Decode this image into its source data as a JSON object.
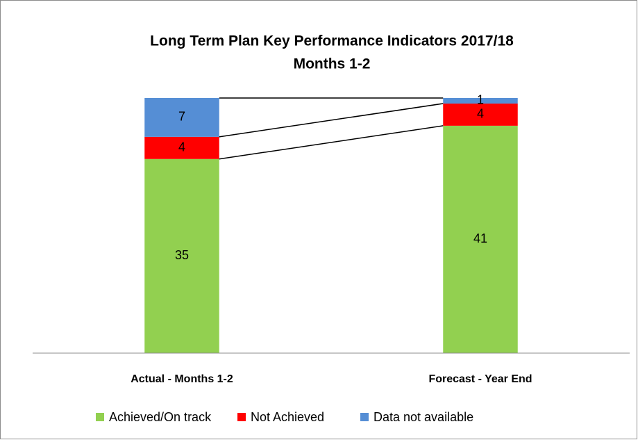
{
  "chart_data": {
    "type": "stacked_bar",
    "title": "Long Term Plan Key Performance Indicators 2017/18",
    "subtitle": "Months 1-2",
    "categories": [
      "Actual - Months 1-2",
      "Forecast - Year End"
    ],
    "series": [
      {
        "name": "Achieved/On track",
        "color": "#92d050",
        "values": [
          35,
          41
        ]
      },
      {
        "name": "Not Achieved",
        "color": "#ff0000",
        "values": [
          4,
          4
        ]
      },
      {
        "name": "Data not available",
        "color": "#558ed5",
        "values": [
          7,
          1
        ]
      }
    ],
    "series_lines": true,
    "legend": "bottom"
  }
}
